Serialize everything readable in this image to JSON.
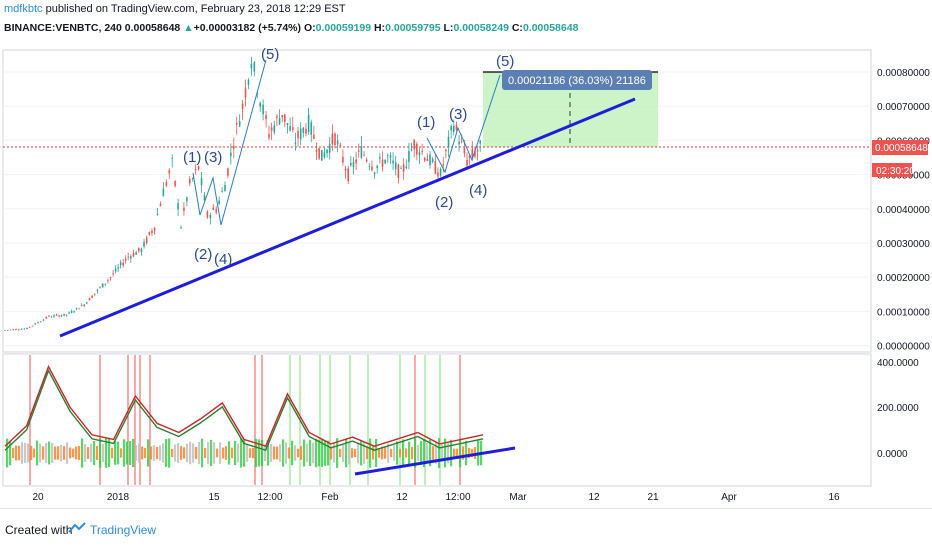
{
  "header": {
    "author": "mdfkbtc",
    "published": "published on TradingView.com, February 23, 2018 12:29 EST",
    "symbol": "BINANCE:VENBTC, 240",
    "last": "0.00058648",
    "change": "+0.00003182 (+5.74%)",
    "o_label": "O:",
    "o_val": "0.00059199",
    "h_label": "H:",
    "h_val": "0.00059795",
    "l_label": "L:",
    "l_val": "0.00058249",
    "c_label": "C:",
    "c_val": "0.00058648"
  },
  "footer": {
    "created": "Created with",
    "brand": "TradingView"
  },
  "colors": {
    "up": "#26a69a",
    "down": "#ef5350",
    "trend": "#1d1ddb",
    "accent": "#2e8ddb"
  },
  "chart_data": [
    {
      "type": "candlestick",
      "title": "BINANCE:VENBTC, 240",
      "yaxis_ticks": [
        "0.00080000",
        "0.00070000",
        "0.00060000",
        "0.00050000",
        "0.00040000",
        "0.00030000",
        "0.00020000",
        "0.00010000",
        "0.00000000"
      ],
      "x_ticks": [
        "20",
        "2018",
        "15",
        "12:00",
        "Feb",
        "12",
        "12:00",
        "Mar",
        "12",
        "21",
        "Apr",
        "16"
      ],
      "price_label": "0.00058648",
      "countdown": "02:30:20",
      "measure_label": "0.00021186 (36.03%) 21186",
      "wave_labels": [
        "(1)",
        "(3)",
        "(2)",
        "(4)",
        "(5)",
        "(1)",
        "(3)",
        "(2)",
        "(4)",
        "(5)"
      ],
      "price_path": [
        [
          0,
          4.5e-05
        ],
        [
          10,
          5e-05
        ],
        [
          20,
          8.5e-05
        ],
        [
          28,
          9e-05
        ],
        [
          36,
          0.00012
        ],
        [
          42,
          0.00016
        ],
        [
          48,
          0.0002
        ],
        [
          56,
          0.00026
        ],
        [
          62,
          0.00028
        ],
        [
          68,
          0.00035
        ],
        [
          72,
          0.00045
        ],
        [
          76,
          0.00053
        ],
        [
          80,
          0.00035
        ],
        [
          84,
          0.00047
        ],
        [
          88,
          0.00052
        ],
        [
          92,
          0.00038
        ],
        [
          96,
          0.0004
        ],
        [
          100,
          0.00047
        ],
        [
          104,
          0.0006
        ],
        [
          108,
          0.0007
        ],
        [
          112,
          0.00084
        ],
        [
          116,
          0.00072
        ],
        [
          120,
          0.00062
        ],
        [
          126,
          0.00068
        ],
        [
          132,
          0.0006
        ],
        [
          138,
          0.00065
        ],
        [
          144,
          0.00055
        ],
        [
          150,
          0.00061
        ],
        [
          156,
          0.0005
        ],
        [
          162,
          0.00057
        ],
        [
          168,
          0.00052
        ],
        [
          174,
          0.00055
        ],
        [
          180,
          0.0005
        ],
        [
          186,
          0.00059
        ],
        [
          192,
          0.00055
        ],
        [
          198,
          0.0005
        ],
        [
          204,
          0.00065
        ],
        [
          210,
          0.00054
        ],
        [
          216,
          0.00058
        ],
        [
          220,
          0.00058648
        ]
      ]
    },
    {
      "type": "line",
      "title": "",
      "yaxis_ticks": [
        "400.0000",
        "200.0000",
        "0.0000"
      ],
      "series": [
        {
          "values": [
            30,
            120,
            380,
            200,
            80,
            60,
            250,
            130,
            90,
            150,
            220,
            60,
            30,
            260,
            90,
            40,
            70,
            30,
            60,
            90,
            40,
            60,
            80
          ]
        }
      ]
    }
  ]
}
